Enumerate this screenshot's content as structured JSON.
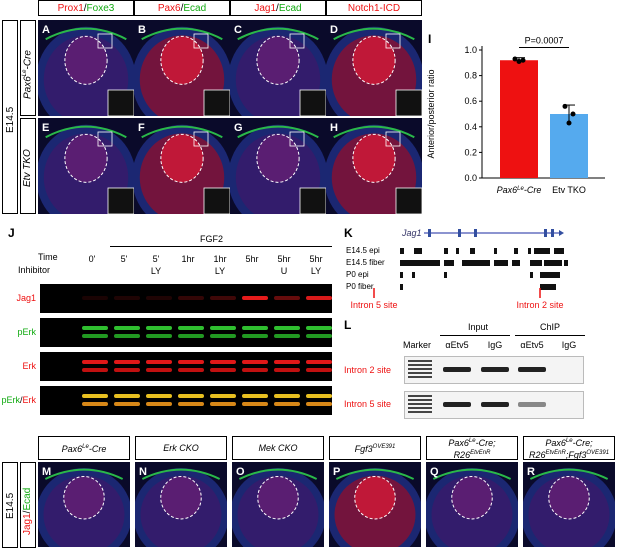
{
  "top_headers": [
    {
      "red": "Prox1",
      "sep": "/",
      "green": "Foxe3"
    },
    {
      "red": "Pax6",
      "sep": "/",
      "green": "Ecad"
    },
    {
      "red": "Jag1",
      "sep": "/",
      "green": "Ecad"
    },
    {
      "red": "Notch1-ICD",
      "sep": "",
      "green": ""
    }
  ],
  "stage_label": "E14.5",
  "row_labels": {
    "row1": "Pax6Le-Cre",
    "row2": "Etv TKO"
  },
  "panel_letters_top": [
    "A",
    "B",
    "C",
    "D",
    "E",
    "F",
    "G",
    "H"
  ],
  "panel_I": {
    "letter": "I",
    "ylabel": "Anterior/posterior ratio",
    "pvalue": "P=0.0007",
    "categories": [
      "Pax6Le-Cre",
      "Etv TKO"
    ],
    "ticks": [
      "0.0",
      "0.2",
      "0.4",
      "0.6",
      "0.8",
      "1.0"
    ]
  },
  "chart_data": {
    "type": "bar",
    "categories": [
      "Pax6Le-Cre",
      "Etv TKO"
    ],
    "values": [
      0.92,
      0.5
    ],
    "errors": [
      0.02,
      0.07
    ],
    "points": [
      [
        0.93,
        0.91,
        0.92
      ],
      [
        0.56,
        0.43,
        0.5
      ]
    ],
    "colors": [
      "#ee1111",
      "#55aaee"
    ],
    "ylabel": "Anterior/posterior ratio",
    "ylim": [
      0,
      1.0
    ],
    "annotation": "P=0.0007"
  },
  "panel_J": {
    "letter": "J",
    "fgf_label": "FGF2",
    "time_label": "Time",
    "inhibitor_label": "Inhibitor",
    "times": [
      "0'",
      "5'",
      "5'",
      "1hr",
      "1hr",
      "5hr",
      "5hr",
      "5hr"
    ],
    "inhibitors": [
      "",
      "",
      "LY",
      "",
      "LY",
      "",
      "U",
      "LY"
    ],
    "blot_labels": [
      {
        "parts": [
          {
            "t": "Jag1",
            "c": "#e11"
          }
        ]
      },
      {
        "parts": [
          {
            "t": "pErk",
            "c": "#1a1"
          }
        ]
      },
      {
        "parts": [
          {
            "t": "Erk",
            "c": "#e11"
          }
        ]
      },
      {
        "parts": [
          {
            "t": "pErk",
            "c": "#1a1"
          },
          {
            "t": "/",
            "c": "#000"
          },
          {
            "t": "Erk",
            "c": "#e11"
          }
        ]
      }
    ]
  },
  "panel_K": {
    "letter": "K",
    "gene": "Jag1",
    "tracks": [
      "E14.5 epi",
      "E14.5 fiber",
      "P0 epi",
      "P0 fiber"
    ],
    "site1": "Intron 5 site",
    "site2": "Intron 2 site"
  },
  "panel_L": {
    "letter": "L",
    "marker": "Marker",
    "input": "Input",
    "chip": "ChIP",
    "lanes": [
      "αEtv5",
      "IgG",
      "αEtv5",
      "IgG"
    ],
    "rows": [
      "Intron 2 site",
      "Intron 5 site"
    ]
  },
  "bottom": {
    "stage": "E14.5",
    "stain_red": "Jag1",
    "stain_sep": "/",
    "stain_green": "Ecad",
    "panels": [
      {
        "letter": "M",
        "title": "Pax6Le-Cre"
      },
      {
        "letter": "N",
        "title": "Erk CKO"
      },
      {
        "letter": "O",
        "title": "Mek CKO"
      },
      {
        "letter": "P",
        "title": "Fgf3OVE391"
      },
      {
        "letter": "Q",
        "title": "Pax6Le-Cre; R26EtvEnR"
      },
      {
        "letter": "R",
        "title": "Pax6Le-Cre; R26EtvEnR;Fgf3OVE391"
      }
    ]
  }
}
